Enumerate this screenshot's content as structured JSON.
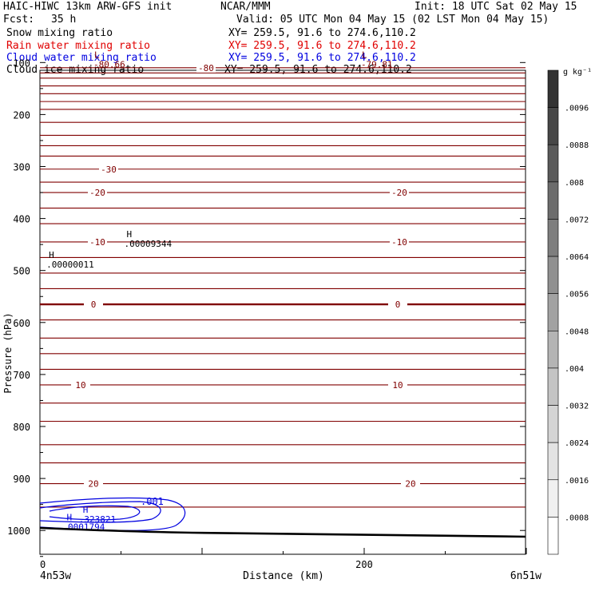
{
  "header": {
    "title": "HAIC-HIWC 13km ARW-GFS init",
    "org": "NCAR/MMM",
    "init": "Init: 18 UTC Sat 02 May 15",
    "fcst_label": "Fcst:",
    "fcst_value": "35 h",
    "valid": "Valid: 05 UTC Mon 04 May 15 (02 LST Mon 04 May 15)"
  },
  "legend": [
    {
      "label": "Snow mixing ratio",
      "xy": "XY= 259.5, 91.6 to 274.6,110.2",
      "color": "#000000"
    },
    {
      "label": "Rain water mixing ratio",
      "xy": "XY= 259.5, 91.6 to 274.6,110.2",
      "color": "#e00000"
    },
    {
      "label": "Cloud water mixing ratio",
      "xy": "XY= 259.5, 91.6 to 274.6,110.2",
      "color": "#0000e0"
    },
    {
      "label": "Cloud ice mixing ratio",
      "xy": "XY= 259.5, 91.6 to 274.6,110.2",
      "color": "#000000"
    }
  ],
  "chart_data": {
    "type": "contour",
    "xlabel": "Distance (km)",
    "ylabel": "Pressure (hPa)",
    "xlim": [
      0,
      300
    ],
    "ylim": [
      1050,
      75
    ],
    "x_ticks": [
      {
        "value": 0,
        "label": "0"
      },
      {
        "value": 200,
        "label": "200"
      }
    ],
    "x_end_labels": {
      "left": "4n53w",
      "right": "6n51w"
    },
    "y_ticks": [
      100,
      200,
      300,
      400,
      500,
      600,
      700,
      800,
      900,
      1000
    ],
    "temperature_contours": {
      "color": "#800000",
      "levels": [
        {
          "value": "-80",
          "p": 110
        },
        {
          "value": "-30",
          "p": 305
        },
        {
          "value": "-20",
          "p": 350
        },
        {
          "value": "-10",
          "p": 445
        },
        {
          "value": "0",
          "p": 565
        },
        {
          "value": "10",
          "p": 720
        },
        {
          "value": "20",
          "p": 910
        }
      ],
      "lows": [
        {
          "label": "L",
          "value": "-80.66",
          "x": 33,
          "p": 100
        },
        {
          "label": "L",
          "value": "-79.81",
          "x": 198,
          "p": 100
        }
      ]
    },
    "cloud_water": {
      "color": "#0000e0",
      "contour_label": ".001",
      "highs": [
        {
          "label": "H",
          "value": ".323821",
          "x": 25,
          "p": 975
        },
        {
          "label": "H",
          "value": ".0001794",
          "x": 15,
          "p": 990
        }
      ]
    },
    "cloud_ice": {
      "highs": [
        {
          "label": "H",
          "value": ".00009344",
          "x": 52,
          "p": 445
        },
        {
          "label": "H",
          "value": ".00000011",
          "x": 4,
          "p": 485
        }
      ]
    },
    "terrain": {
      "color": "#000000",
      "p_left": 995,
      "p_right": 1010
    },
    "colorbar": {
      "unit": "g kg⁻¹",
      "labels": [
        ".0096",
        ".0088",
        ".008",
        ".0072",
        ".0064",
        ".0056",
        ".0048",
        ".004",
        ".0032",
        ".0024",
        ".0016",
        ".0008"
      ],
      "colors": [
        "#333333",
        "#474747",
        "#5a5a5a",
        "#6c6c6c",
        "#7e7e7e",
        "#909090",
        "#a2a2a2",
        "#b4b4b4",
        "#c4c4c4",
        "#d4d4d4",
        "#e3e3e3",
        "#f0f0f0",
        "#ffffff"
      ]
    }
  }
}
